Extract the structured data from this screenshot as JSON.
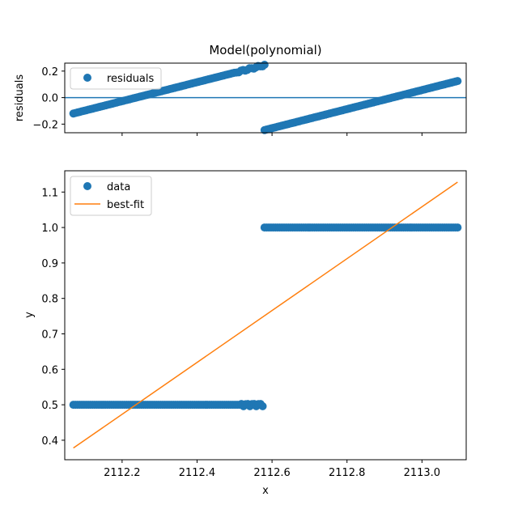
{
  "chart_data": [
    {
      "type": "scatter",
      "title": "Model(polynomial)",
      "xlabel": "",
      "ylabel": "residuals",
      "xlim": [
        2112.047,
        2113.118
      ],
      "ylim": [
        -0.265,
        0.26
      ],
      "yticks": [
        -0.2,
        0.0,
        0.2
      ],
      "ytick_labels": [
        "−0.2",
        "0.0",
        "0.2"
      ],
      "xticks": [
        2112.2,
        2112.4,
        2112.6,
        2112.8,
        2113.0
      ],
      "show_xtick_labels": false,
      "hline": 0.0,
      "legend": {
        "placement": "upper left",
        "entries": [
          "residuals"
        ]
      },
      "series": [
        {
          "name": "residuals",
          "style": "markers",
          "color": "#1f77b4",
          "x_start": 2112.07,
          "x_end": 2113.095,
          "n_points": 180,
          "segments": [
            {
              "x_range": [
                2112.07,
                2112.58
              ],
              "y_range": [
                -0.12,
                0.245
              ]
            },
            {
              "x_range": [
                2112.58,
                2113.095
              ],
              "y_range": [
                -0.245,
                0.125
              ]
            }
          ]
        }
      ]
    },
    {
      "type": "line",
      "title": "",
      "xlabel": "x",
      "ylabel": "y",
      "xlim": [
        2112.047,
        2113.118
      ],
      "ylim": [
        0.345,
        1.16
      ],
      "yticks": [
        0.4,
        0.5,
        0.6,
        0.7,
        0.8,
        0.9,
        1.0,
        1.1
      ],
      "ytick_labels": [
        "0.4",
        "0.5",
        "0.6",
        "0.7",
        "0.8",
        "0.9",
        "1.0",
        "1.1"
      ],
      "xticks": [
        2112.2,
        2112.4,
        2112.6,
        2112.8,
        2113.0
      ],
      "xtick_labels": [
        "2112.2",
        "2112.4",
        "2112.6",
        "2112.8",
        "2113.0"
      ],
      "legend": {
        "placement": "upper left",
        "entries": [
          "data",
          "best-fit"
        ]
      },
      "series": [
        {
          "name": "data",
          "style": "markers",
          "color": "#1f77b4",
          "segments": [
            {
              "x_range": [
                2112.07,
                2112.575
              ],
              "y": 0.5
            },
            {
              "x_range": [
                2112.58,
                2113.095
              ],
              "y": 1.0
            }
          ]
        },
        {
          "name": "best-fit",
          "style": "line",
          "color": "#ff7f0e",
          "x": [
            2112.07,
            2113.095
          ],
          "y": [
            0.378,
            1.128
          ]
        }
      ]
    }
  ]
}
